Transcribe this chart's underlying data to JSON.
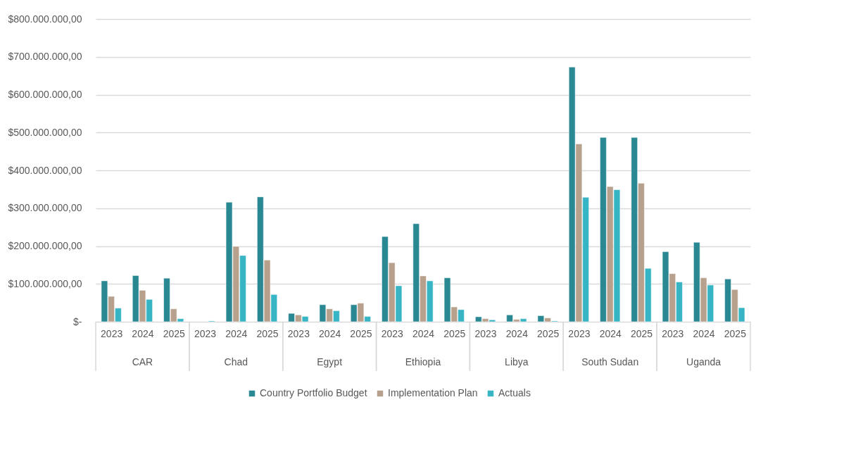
{
  "chart_data": {
    "type": "bar",
    "categories": [
      "2023",
      "2024",
      "2025",
      "2023",
      "2024",
      "2025",
      "2023",
      "2024",
      "2025",
      "2023",
      "2024",
      "2025",
      "2023",
      "2024",
      "2025",
      "2023",
      "2024",
      "2025",
      "2023",
      "2024",
      "2025"
    ],
    "annotations": [
      "CAR",
      "Chad",
      "Egypt",
      "Ethiopia",
      "Libya",
      "South Sudan",
      "Uganda"
    ],
    "series": [
      {
        "name": "Country Portfolio Budget",
        "color": "#2a8893",
        "values": [
          108000000,
          122000000,
          115000000,
          null,
          316000000,
          330000000,
          22000000,
          45000000,
          45000000,
          225000000,
          259000000,
          116000000,
          13000000,
          18000000,
          16000000,
          673000000,
          487000000,
          487000000,
          185000000,
          210000000,
          113000000
        ]
      },
      {
        "name": "Implementation Plan",
        "color": "#b7a08c",
        "values": [
          67000000,
          83000000,
          34000000,
          null,
          199000000,
          163000000,
          18000000,
          34000000,
          49000000,
          156000000,
          121000000,
          39000000,
          8000000,
          6000000,
          10000000,
          470000000,
          357000000,
          366000000,
          127000000,
          116000000,
          85000000
        ]
      },
      {
        "name": "Actuals",
        "color": "#37b5c4",
        "values": [
          36000000,
          59000000,
          8000000,
          2000000,
          175000000,
          72000000,
          14000000,
          29000000,
          14000000,
          95000000,
          108000000,
          32000000,
          5000000,
          8000000,
          2000000,
          329000000,
          349000000,
          141000000,
          105000000,
          97000000,
          37000000
        ]
      }
    ],
    "ylim": [
      0,
      800000000
    ],
    "yticks": [
      {
        "value": 0,
        "label": "$-"
      },
      {
        "value": 100000000,
        "label": "$100.000.000,00"
      },
      {
        "value": 200000000,
        "label": "$200.000.000,00"
      },
      {
        "value": 300000000,
        "label": "$300.000.000,00"
      },
      {
        "value": 400000000,
        "label": "$400.000.000,00"
      },
      {
        "value": 500000000,
        "label": "$500.000.000,00"
      },
      {
        "value": 600000000,
        "label": "$600.000.000,00"
      },
      {
        "value": 700000000,
        "label": "$700.000.000,00"
      },
      {
        "value": 800000000,
        "label": "$800.000.000,00"
      }
    ],
    "grid": "y",
    "legend": "bottom"
  }
}
